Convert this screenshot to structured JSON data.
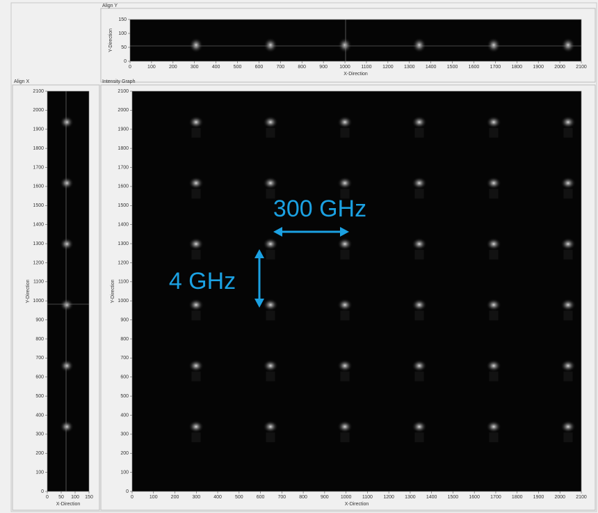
{
  "chart_data": [
    {
      "type": "heatmap",
      "title": "Align Y",
      "x_label": "X-Direction",
      "y_label": "Y-Direction",
      "xlim": [
        0,
        2100
      ],
      "xticks": [
        0,
        100,
        200,
        300,
        400,
        500,
        600,
        700,
        800,
        900,
        1000,
        1100,
        1200,
        1300,
        1400,
        1500,
        1600,
        1700,
        1800,
        1900,
        2000,
        2100
      ],
      "ylim": [
        0,
        150
      ],
      "yticks": [
        0,
        50,
        100,
        150
      ]
    },
    {
      "type": "heatmap",
      "title": "Align X",
      "x_label": "X-Direction",
      "y_label": "Y-Direction",
      "xlim": [
        0,
        150
      ],
      "xticks": [
        0,
        50,
        100,
        150
      ],
      "ylim": [
        0,
        2100
      ],
      "yticks": [
        0,
        100,
        200,
        300,
        400,
        500,
        600,
        700,
        800,
        900,
        1000,
        1100,
        1200,
        1300,
        1400,
        1500,
        1600,
        1700,
        1800,
        1900,
        2000,
        2100
      ]
    },
    {
      "type": "heatmap",
      "title": "Intensity Graph",
      "x_label": "X-Direction",
      "y_label": "Y-Direction",
      "xlim": [
        0,
        2100
      ],
      "xticks": [
        0,
        100,
        200,
        300,
        400,
        500,
        600,
        700,
        800,
        900,
        1000,
        1100,
        1200,
        1300,
        1400,
        1500,
        1600,
        1700,
        1800,
        1900,
        2000,
        2100
      ],
      "ylim": [
        0,
        2100
      ],
      "yticks": [
        0,
        100,
        200,
        300,
        400,
        500,
        600,
        700,
        800,
        900,
        1000,
        1100,
        1200,
        1300,
        1400,
        1500,
        1600,
        1700,
        1800,
        1900,
        2000,
        2100
      ]
    }
  ],
  "annotations": [
    "300 GHz",
    "4 GHz"
  ]
}
